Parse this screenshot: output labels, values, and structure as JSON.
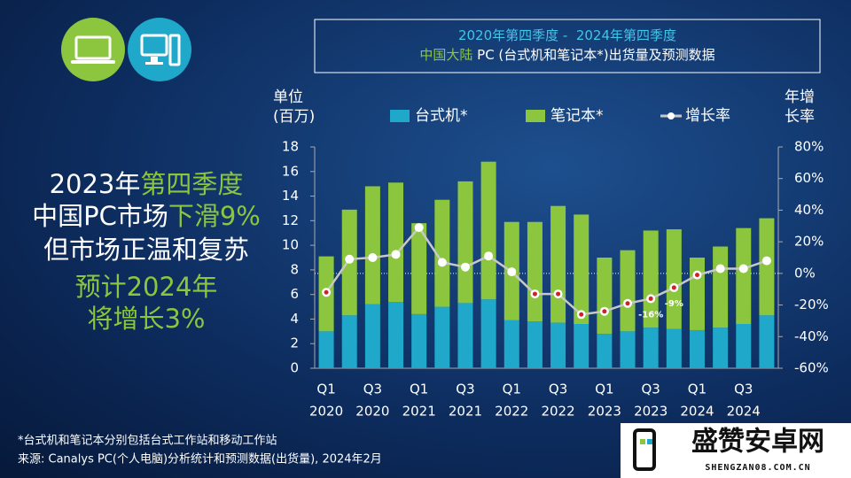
{
  "chart_data": {
    "type": "stacked_bar_line",
    "title_lines": [
      [
        {
          "text": "2020年第四季度 -  2024年第四季度"
        }
      ],
      [
        {
          "text": "中国大陆",
          "highlight": true
        },
        {
          "text": " PC (台式机和笔记本*)出货量及预测数据"
        }
      ]
    ],
    "headline": [
      [
        {
          "text": "2023年"
        },
        {
          "text": "第四季度",
          "highlight": true
        }
      ],
      [
        {
          "text": "中国PC市场"
        },
        {
          "text": "下滑9%",
          "highlight": true
        }
      ],
      [
        {
          "text": "但市场正温和复苏"
        }
      ],
      [
        {
          "text": "预计2024年",
          "highlight": true
        }
      ],
      [
        {
          "text": "将增长3%",
          "highlight": true
        }
      ]
    ],
    "y_label_lines": [
      "单位",
      "(百万)"
    ],
    "y2_label_lines": [
      "年增",
      "长率"
    ],
    "categories": [
      "Q1",
      null,
      "Q3",
      null,
      "Q1",
      null,
      "Q3",
      null,
      "Q1",
      null,
      "Q3",
      null,
      "Q1",
      null,
      "Q3",
      null,
      "Q1",
      null,
      "Q3",
      null
    ],
    "category_years": [
      "2020",
      null,
      "2020",
      null,
      "2021",
      null,
      "2021",
      null,
      "2022",
      null,
      "2022",
      null,
      "2023",
      null,
      "2023",
      null,
      "2024",
      null,
      "2024",
      null
    ],
    "series": [
      {
        "name": "台式机*",
        "color": "#1fa8c9",
        "values": [
          3.0,
          4.3,
          5.2,
          5.4,
          4.4,
          5.0,
          5.3,
          5.6,
          3.9,
          3.8,
          3.7,
          3.6,
          2.8,
          3.0,
          3.3,
          3.2,
          3.1,
          3.3,
          3.6,
          4.3
        ]
      },
      {
        "name": "笔记本*",
        "color": "#8cc63f",
        "values": [
          6.1,
          8.6,
          9.6,
          9.7,
          7.4,
          8.7,
          9.9,
          11.2,
          8.0,
          8.1,
          9.5,
          8.9,
          6.2,
          6.6,
          7.9,
          8.1,
          5.9,
          6.6,
          7.8,
          7.9
        ]
      },
      {
        "name": "增长率",
        "color": "#c8c8c8",
        "axis": "y2",
        "values": [
          -12,
          9,
          10,
          12,
          29,
          7,
          4,
          11,
          1,
          -13,
          -13,
          -26,
          -24,
          -19,
          -16,
          -9,
          -1,
          3,
          3,
          8
        ],
        "value_labels": [
          null,
          null,
          null,
          null,
          null,
          null,
          null,
          null,
          null,
          null,
          null,
          null,
          null,
          null,
          "-16%",
          "-9%",
          null,
          null,
          null,
          null
        ]
      }
    ],
    "ylim": [
      0,
      18
    ],
    "yticks": [
      0,
      2,
      4,
      6,
      8,
      10,
      12,
      14,
      16,
      18
    ],
    "y2lim": [
      -60,
      80
    ],
    "y2ticks": [
      {
        "value": -60,
        "label": "-60%"
      },
      {
        "value": -40,
        "label": "-40%"
      },
      {
        "value": -20,
        "label": "-20%"
      },
      {
        "value": 0,
        "label": "0%"
      },
      {
        "value": 20,
        "label": "20%"
      },
      {
        "value": 40,
        "label": "40%"
      },
      {
        "value": 60,
        "label": "60%"
      },
      {
        "value": 80,
        "label": "80%"
      }
    ],
    "footnotes": [
      "*台式机和笔记本分别包括台式工作站和移动工作站",
      "来源: Canalys PC(个人电脑)分析统计和预测数据(出货量), 2024年2月"
    ],
    "logo": {
      "name": "盛赞安卓网",
      "url": "SHENGZAN08.COM.CN"
    }
  }
}
